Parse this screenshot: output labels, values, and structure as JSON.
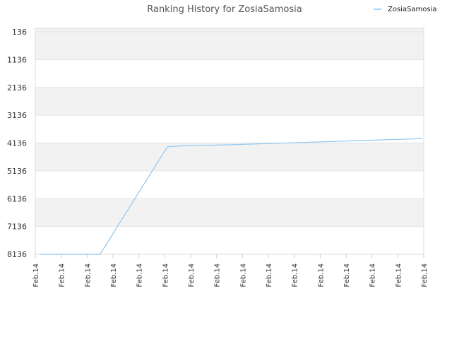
{
  "chart_data": {
    "type": "line",
    "title": "Ranking History for ZosiaSamosia",
    "xlabel": "",
    "ylabel": "",
    "y_axis": {
      "reversed": true,
      "ticks": [
        136,
        1136,
        2136,
        3136,
        4136,
        5136,
        6136,
        7136,
        8136
      ],
      "ylim": [
        136,
        8136
      ]
    },
    "categories": [
      "Feb.14",
      "Feb.14",
      "Feb.14",
      "Feb.14",
      "Feb.14",
      "Feb.14",
      "Feb.14",
      "Feb.14",
      "Feb.14",
      "Feb.14",
      "Feb.14",
      "Feb.14",
      "Feb.14",
      "Feb.14",
      "Feb.14",
      "Feb.14"
    ],
    "series": [
      {
        "name": "ZosiaSamosia",
        "color": "#90c8f0",
        "points": [
          [
            0.2,
            8136
          ],
          [
            2.5,
            8136
          ],
          [
            5.1,
            4270
          ],
          [
            5.6,
            4240
          ],
          [
            6.5,
            4220
          ],
          [
            7.5,
            4200
          ],
          [
            8.5,
            4170
          ],
          [
            9.5,
            4140
          ],
          [
            10.5,
            4110
          ],
          [
            11.5,
            4080
          ],
          [
            12.5,
            4050
          ],
          [
            13.5,
            4020
          ],
          [
            14.5,
            3990
          ],
          [
            14.95,
            3970
          ]
        ]
      }
    ],
    "grid": true,
    "alternating_bands": true,
    "legend_position": "top-right"
  }
}
